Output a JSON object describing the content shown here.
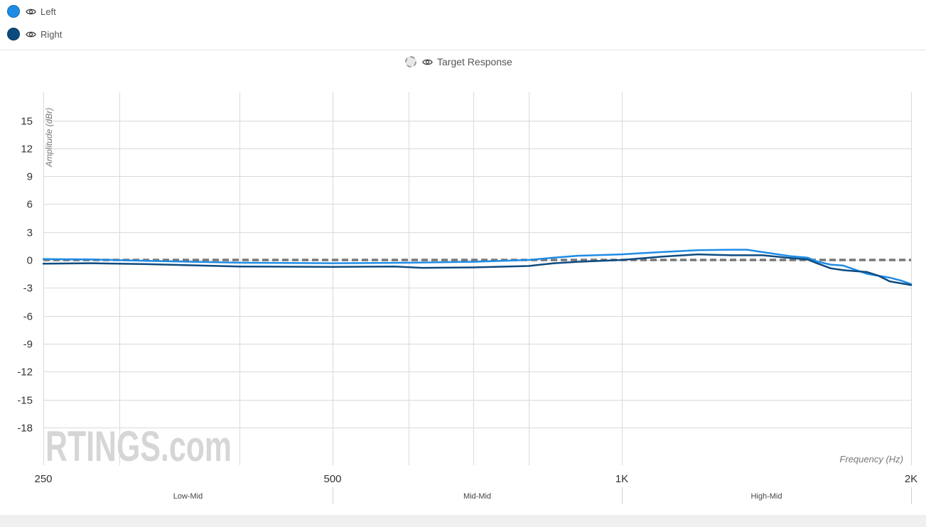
{
  "legend": {
    "items": [
      {
        "label": "Left",
        "color": "#1e8ce6",
        "icon": "eye-icon"
      },
      {
        "label": "Right",
        "color": "#0d4a7f",
        "icon": "eye-icon"
      }
    ],
    "target": {
      "label": "Target Response",
      "icon": "eye-icon"
    }
  },
  "watermark": "RTINGS.com",
  "chart_data": {
    "type": "line",
    "xlabel": "Frequency (Hz)",
    "ylabel": "Amplitude (dBr)",
    "x_scale": "log",
    "xlim": [
      250,
      2000
    ],
    "ylim": [
      -21,
      18
    ],
    "x_ticks": [
      {
        "value": 250,
        "label": "250"
      },
      {
        "value": 500,
        "label": "500"
      },
      {
        "value": 1000,
        "label": "1K"
      },
      {
        "value": 2000,
        "label": "2K"
      }
    ],
    "x_gridlines": [
      250,
      300,
      400,
      500,
      600,
      700,
      800,
      1000,
      2000
    ],
    "y_ticks": [
      15,
      12,
      9,
      6,
      3,
      0,
      -3,
      -6,
      -9,
      -12,
      -15,
      -18
    ],
    "grid": true,
    "bands": [
      {
        "label": "Low-Mid",
        "from": 250,
        "to": 500
      },
      {
        "label": "Mid-Mid",
        "from": 500,
        "to": 1000
      },
      {
        "label": "High-Mid",
        "from": 1000,
        "to": 2000
      }
    ],
    "series": [
      {
        "name": "Left",
        "color": "#1e8ce6",
        "x": [
          250,
          280,
          320,
          400,
          500,
          600,
          700,
          800,
          850,
          900,
          1000,
          1100,
          1200,
          1300,
          1350,
          1400,
          1500,
          1560,
          1600,
          1650,
          1700,
          1800,
          1900,
          1950,
          2000
        ],
        "y": [
          0.1,
          0.05,
          -0.1,
          -0.3,
          -0.35,
          -0.3,
          -0.2,
          0.0,
          0.25,
          0.45,
          0.6,
          0.85,
          1.05,
          1.1,
          1.1,
          0.85,
          0.4,
          0.25,
          -0.2,
          -0.5,
          -0.6,
          -1.5,
          -1.9,
          -2.2,
          -2.6
        ]
      },
      {
        "name": "Right",
        "color": "#0d4a7f",
        "x": [
          250,
          280,
          320,
          400,
          500,
          580,
          620,
          700,
          800,
          850,
          900,
          1000,
          1100,
          1200,
          1300,
          1400,
          1500,
          1560,
          1600,
          1650,
          1700,
          1750,
          1800,
          1850,
          1900,
          2000
        ],
        "y": [
          -0.4,
          -0.35,
          -0.45,
          -0.7,
          -0.75,
          -0.7,
          -0.85,
          -0.8,
          -0.65,
          -0.35,
          -0.2,
          0.0,
          0.35,
          0.6,
          0.5,
          0.5,
          0.2,
          0.05,
          -0.4,
          -0.9,
          -1.1,
          -1.2,
          -1.3,
          -1.7,
          -2.3,
          -2.7
        ]
      },
      {
        "name": "Target Response",
        "color": "#777777",
        "dashed": true,
        "x": [
          250,
          2000
        ],
        "y": [
          0,
          0
        ]
      }
    ]
  }
}
